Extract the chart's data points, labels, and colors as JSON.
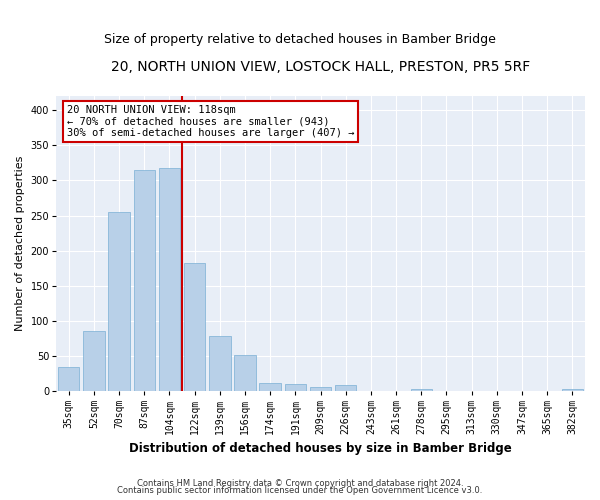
{
  "title": "20, NORTH UNION VIEW, LOSTOCK HALL, PRESTON, PR5 5RF",
  "subtitle": "Size of property relative to detached houses in Bamber Bridge",
  "xlabel": "Distribution of detached houses by size in Bamber Bridge",
  "ylabel": "Number of detached properties",
  "bar_labels": [
    "35sqm",
    "52sqm",
    "70sqm",
    "87sqm",
    "104sqm",
    "122sqm",
    "139sqm",
    "156sqm",
    "174sqm",
    "191sqm",
    "209sqm",
    "226sqm",
    "243sqm",
    "261sqm",
    "278sqm",
    "295sqm",
    "313sqm",
    "330sqm",
    "347sqm",
    "365sqm",
    "382sqm"
  ],
  "bar_values": [
    35,
    86,
    255,
    315,
    318,
    183,
    79,
    52,
    12,
    10,
    6,
    9,
    0,
    0,
    4,
    1,
    0,
    0,
    0,
    0,
    4
  ],
  "bar_color": "#b8d0e8",
  "bar_edge_color": "#7aafd4",
  "vline_color": "#cc0000",
  "annotation_text": "20 NORTH UNION VIEW: 118sqm\n← 70% of detached houses are smaller (943)\n30% of semi-detached houses are larger (407) →",
  "annotation_box_color": "#cc0000",
  "ylim": [
    0,
    420
  ],
  "yticks": [
    0,
    50,
    100,
    150,
    200,
    250,
    300,
    350,
    400
  ],
  "background_color": "#ffffff",
  "plot_bg_color": "#e8eef7",
  "grid_color": "#ffffff",
  "footer_line1": "Contains HM Land Registry data © Crown copyright and database right 2024.",
  "footer_line2": "Contains public sector information licensed under the Open Government Licence v3.0.",
  "title_fontsize": 10,
  "subtitle_fontsize": 9,
  "tick_fontsize": 7,
  "ylabel_fontsize": 8,
  "xlabel_fontsize": 8.5,
  "footer_fontsize": 6,
  "annotation_fontsize": 7.5
}
